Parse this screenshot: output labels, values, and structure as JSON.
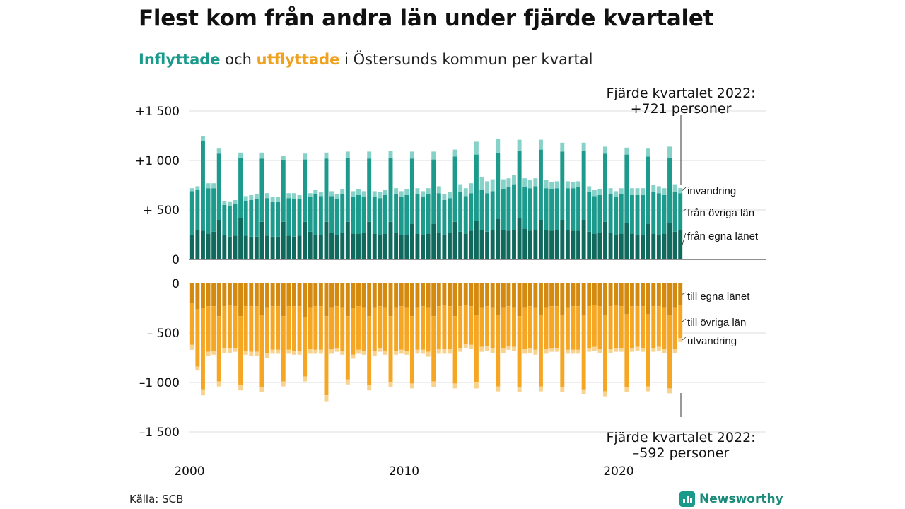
{
  "title": "Flest kom från andra län under fjärde kvartalet",
  "subtitle": {
    "inflow_word": "Inflyttade",
    "connector": "och",
    "outflow_word": "utflyttade",
    "rest": "i Östersunds kommun per kvartal"
  },
  "source": "Källa: SCB",
  "brand": "Newsworthy",
  "colors": {
    "in_local": "#10695d",
    "in_other": "#1c9a8c",
    "in_immigration": "#86d2c8",
    "out_local": "#d48a0e",
    "out_other": "#f5a623",
    "out_emigration": "#f9d28d",
    "brand": "#1a9a8a"
  },
  "chart_data": {
    "type": "bar",
    "stacked": true,
    "x_range": [
      2000,
      2022.75
    ],
    "x_ticks": [
      {
        "value": 2000,
        "label": "2000"
      },
      {
        "value": 2010,
        "label": "2010"
      },
      {
        "value": 2020,
        "label": "2020"
      }
    ],
    "ylim": [
      -1500,
      1500
    ],
    "y_ticks_top": [
      {
        "value": 1500,
        "label": "+1 500"
      },
      {
        "value": 1000,
        "label": "+1 000"
      },
      {
        "value": 500,
        "label": "+  500"
      },
      {
        "value": 0,
        "label": "0"
      }
    ],
    "y_ticks_bottom": [
      {
        "value": 0,
        "label": "0"
      },
      {
        "value": -500,
        "label": "–  500"
      },
      {
        "value": -1000,
        "label": "–1 000"
      },
      {
        "value": -1500,
        "label": "–1 500"
      }
    ],
    "grid": true,
    "series_labels": {
      "in_immigration": "invandring",
      "in_other": "från övriga län",
      "in_local": "från egna länet",
      "out_local": "till egna länet",
      "out_other": "till övriga län",
      "out_emigration": "utvandring"
    },
    "annotations": {
      "top": {
        "line1": "Fjärde kvartalet 2022:",
        "line2": "+721 personer"
      },
      "bottom": {
        "line1": "Fjärde kvartalet 2022:",
        "line2": "–592 personer"
      }
    },
    "x": [
      "2000Q1",
      "2000Q2",
      "2000Q3",
      "2000Q4",
      "2001Q1",
      "2001Q2",
      "2001Q3",
      "2001Q4",
      "2002Q1",
      "2002Q2",
      "2002Q3",
      "2002Q4",
      "2003Q1",
      "2003Q2",
      "2003Q3",
      "2003Q4",
      "2004Q1",
      "2004Q2",
      "2004Q3",
      "2004Q4",
      "2005Q1",
      "2005Q2",
      "2005Q3",
      "2005Q4",
      "2006Q1",
      "2006Q2",
      "2006Q3",
      "2006Q4",
      "2007Q1",
      "2007Q2",
      "2007Q3",
      "2007Q4",
      "2008Q1",
      "2008Q2",
      "2008Q3",
      "2008Q4",
      "2009Q1",
      "2009Q2",
      "2009Q3",
      "2009Q4",
      "2010Q1",
      "2010Q2",
      "2010Q3",
      "2010Q4",
      "2011Q1",
      "2011Q2",
      "2011Q3",
      "2011Q4",
      "2012Q1",
      "2012Q2",
      "2012Q3",
      "2012Q4",
      "2013Q1",
      "2013Q2",
      "2013Q3",
      "2013Q4",
      "2014Q1",
      "2014Q2",
      "2014Q3",
      "2014Q4",
      "2015Q1",
      "2015Q2",
      "2015Q3",
      "2015Q4",
      "2016Q1",
      "2016Q2",
      "2016Q3",
      "2016Q4",
      "2017Q1",
      "2017Q2",
      "2017Q3",
      "2017Q4",
      "2018Q1",
      "2018Q2",
      "2018Q3",
      "2018Q4",
      "2019Q1",
      "2019Q2",
      "2019Q3",
      "2019Q4",
      "2020Q1",
      "2020Q2",
      "2020Q3",
      "2020Q4",
      "2021Q1",
      "2021Q2",
      "2021Q3",
      "2021Q4",
      "2022Q1",
      "2022Q2",
      "2022Q3",
      "2022Q4"
    ],
    "in_local": [
      250,
      300,
      290,
      260,
      280,
      400,
      250,
      230,
      240,
      420,
      240,
      230,
      230,
      380,
      240,
      230,
      230,
      380,
      240,
      230,
      240,
      380,
      280,
      250,
      250,
      380,
      270,
      250,
      270,
      380,
      260,
      260,
      270,
      380,
      260,
      250,
      260,
      380,
      270,
      250,
      250,
      360,
      260,
      250,
      260,
      360,
      270,
      250,
      270,
      380,
      280,
      260,
      290,
      390,
      300,
      280,
      300,
      410,
      300,
      290,
      300,
      420,
      310,
      290,
      300,
      400,
      300,
      290,
      300,
      400,
      300,
      290,
      290,
      400,
      280,
      260,
      270,
      380,
      270,
      250,
      260,
      370,
      260,
      250,
      250,
      360,
      260,
      250,
      260,
      370,
      280,
      300
    ],
    "in_other": [
      440,
      400,
      910,
      460,
      440,
      670,
      300,
      310,
      320,
      610,
      350,
      370,
      380,
      640,
      380,
      350,
      350,
      620,
      380,
      380,
      370,
      630,
      350,
      410,
      390,
      640,
      370,
      360,
      390,
      650,
      370,
      390,
      360,
      640,
      370,
      370,
      390,
      650,
      390,
      380,
      400,
      660,
      400,
      380,
      400,
      650,
      400,
      350,
      350,
      660,
      400,
      380,
      380,
      670,
      400,
      390,
      390,
      670,
      410,
      440,
      460,
      680,
      420,
      430,
      440,
      710,
      420,
      420,
      420,
      690,
      420,
      430,
      440,
      700,
      400,
      380,
      380,
      690,
      390,
      380,
      400,
      690,
      390,
      400,
      400,
      680,
      420,
      420,
      390,
      660,
      400,
      370
    ],
    "in_immigration": [
      30,
      40,
      50,
      50,
      50,
      50,
      40,
      40,
      40,
      50,
      50,
      50,
      50,
      60,
      50,
      50,
      50,
      50,
      50,
      60,
      40,
      60,
      40,
      40,
      40,
      60,
      50,
      50,
      50,
      60,
      60,
      60,
      60,
      70,
      60,
      60,
      50,
      70,
      60,
      60,
      60,
      70,
      60,
      60,
      60,
      80,
      70,
      60,
      60,
      70,
      80,
      80,
      100,
      130,
      130,
      120,
      120,
      140,
      100,
      90,
      90,
      110,
      90,
      80,
      80,
      100,
      80,
      70,
      70,
      90,
      70,
      60,
      60,
      80,
      60,
      60,
      60,
      70,
      60,
      60,
      60,
      70,
      70,
      70,
      70,
      80,
      70,
      70,
      70,
      110,
      80,
      51
    ],
    "out_local": [
      200,
      260,
      250,
      230,
      230,
      330,
      230,
      220,
      230,
      330,
      230,
      230,
      230,
      320,
      240,
      230,
      230,
      330,
      230,
      230,
      230,
      340,
      240,
      230,
      230,
      330,
      240,
      230,
      240,
      330,
      250,
      230,
      240,
      330,
      240,
      230,
      240,
      330,
      240,
      230,
      240,
      330,
      240,
      230,
      240,
      330,
      230,
      220,
      230,
      330,
      230,
      220,
      230,
      320,
      240,
      230,
      240,
      320,
      240,
      230,
      240,
      330,
      240,
      230,
      240,
      320,
      240,
      230,
      230,
      320,
      240,
      230,
      230,
      320,
      230,
      220,
      230,
      320,
      230,
      220,
      230,
      310,
      230,
      230,
      230,
      310,
      230,
      230,
      240,
      320,
      240,
      220
    ],
    "out_other": [
      420,
      580,
      820,
      460,
      450,
      660,
      420,
      430,
      420,
      700,
      450,
      460,
      460,
      730,
      460,
      440,
      440,
      660,
      440,
      450,
      450,
      600,
      420,
      440,
      440,
      800,
      420,
      420,
      440,
      640,
      470,
      440,
      440,
      700,
      440,
      420,
      440,
      670,
      440,
      440,
      440,
      680,
      430,
      440,
      450,
      660,
      430,
      440,
      430,
      680,
      420,
      390,
      390,
      680,
      400,
      400,
      410,
      720,
      410,
      400,
      400,
      720,
      420,
      420,
      430,
      720,
      420,
      420,
      420,
      730,
      430,
      440,
      440,
      750,
      420,
      420,
      430,
      770,
      430,
      430,
      420,
      740,
      420,
      410,
      420,
      730,
      420,
      410,
      420,
      740,
      420,
      330
    ],
    "out_emigration": [
      50,
      40,
      60,
      40,
      40,
      50,
      50,
      50,
      40,
      50,
      40,
      40,
      40,
      50,
      50,
      40,
      40,
      50,
      40,
      40,
      40,
      50,
      50,
      40,
      40,
      60,
      50,
      40,
      40,
      50,
      40,
      40,
      40,
      50,
      50,
      40,
      40,
      50,
      40,
      40,
      40,
      50,
      40,
      40,
      50,
      60,
      50,
      50,
      50,
      50,
      40,
      40,
      40,
      60,
      50,
      50,
      50,
      50,
      50,
      40,
      40,
      50,
      50,
      50,
      50,
      50,
      50,
      40,
      40,
      50,
      40,
      40,
      40,
      50,
      40,
      40,
      40,
      50,
      40,
      40,
      40,
      50,
      40,
      40,
      40,
      50,
      40,
      40,
      40,
      50,
      40,
      42
    ]
  }
}
